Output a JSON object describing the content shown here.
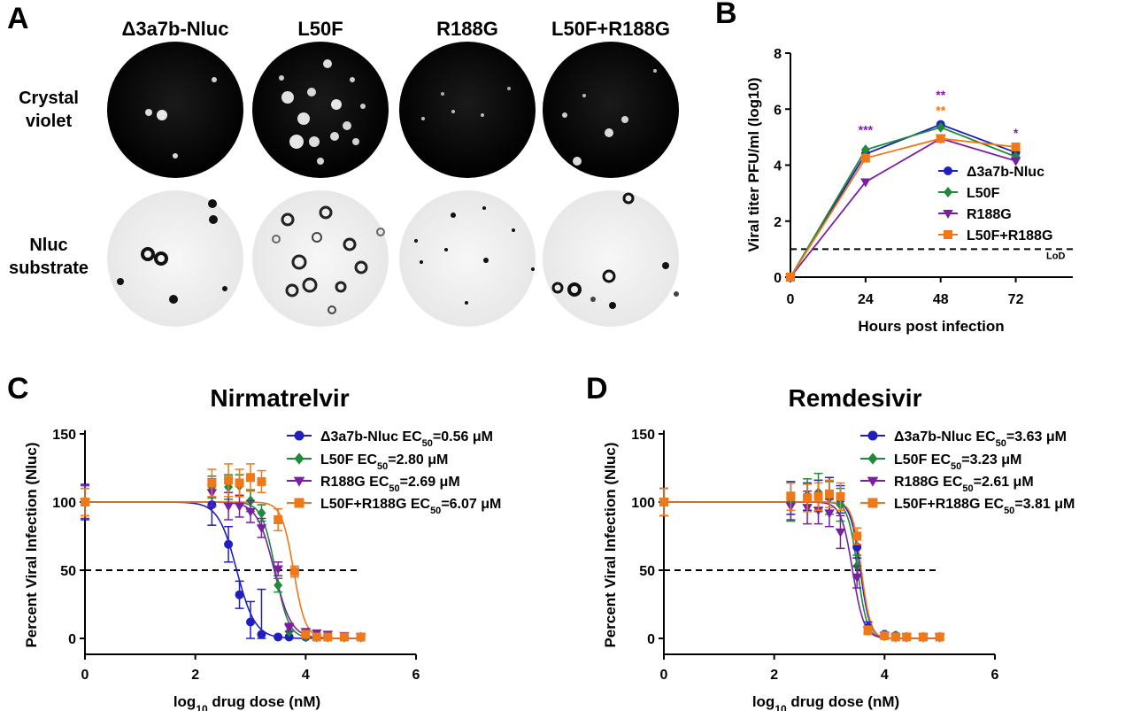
{
  "panels": {
    "a": "A",
    "b": "B",
    "c": "C",
    "d": "D"
  },
  "plaques": {
    "columns": [
      "Δ3a7b-Nluc",
      "L50F",
      "R188G",
      "L50F+R188G"
    ],
    "rows": [
      {
        "line1": "Crystal",
        "line2": "violet"
      },
      {
        "line1": "Nluc",
        "line2": "substrate"
      }
    ]
  },
  "colors": {
    "wt": "#1f1fbf",
    "l50f": "#1f8a3a",
    "r188g": "#7b1fa2",
    "double": "#f07818",
    "axis": "#000000"
  },
  "chart_data": [
    {
      "id": "B",
      "type": "line",
      "title": "",
      "xlabel": "Hours post infection",
      "ylabel": "Viral titer PFU/ml (log10)",
      "x": [
        0,
        24,
        48,
        72
      ],
      "xticks": [
        "0",
        "24",
        "48",
        "72"
      ],
      "yticks": [
        "0",
        "2",
        "4",
        "6",
        "8"
      ],
      "xlim": [
        0,
        84
      ],
      "ylim": [
        0,
        8
      ],
      "lod": {
        "value": 1,
        "label": "LoD"
      },
      "series": [
        {
          "name": "Δ3a7b-Nluc",
          "color": "#1f1fbf",
          "marker": "circle",
          "values": [
            0,
            4.4,
            5.45,
            4.45
          ]
        },
        {
          "name": "L50F",
          "color": "#1f8a3a",
          "marker": "diamond",
          "values": [
            0,
            4.55,
            5.35,
            4.3
          ]
        },
        {
          "name": "R188G",
          "color": "#7b1fa2",
          "marker": "triangle",
          "values": [
            0,
            3.4,
            4.95,
            4.15
          ]
        },
        {
          "name": "L50F+R188G",
          "color": "#f07818",
          "marker": "square",
          "values": [
            0,
            4.25,
            4.95,
            4.65
          ]
        }
      ],
      "significance": [
        {
          "x": 24,
          "y": 5.1,
          "text": "***",
          "color": "#7b1fa2"
        },
        {
          "x": 48,
          "y": 6.35,
          "text": "**",
          "color": "#7b1fa2"
        },
        {
          "x": 48,
          "y": 5.8,
          "text": "**",
          "color": "#f07818"
        },
        {
          "x": 72,
          "y": 5.0,
          "text": "*",
          "color": "#7b1fa2"
        }
      ]
    },
    {
      "id": "C",
      "type": "scatter",
      "title": "Nirmatrelvir",
      "xlabel": "log10 drug dose (nM)",
      "ylabel": "Percent Viral Infection (Nluc)",
      "xticks": [
        "0",
        "2",
        "4",
        "6"
      ],
      "yticks": [
        "0",
        "50",
        "100",
        "150"
      ],
      "xlim": [
        0,
        6
      ],
      "ylim": [
        0,
        150
      ],
      "reference_line": 50,
      "ec50_label": "EC",
      "ec50_sub": "50",
      "series": [
        {
          "name": "Δ3a7b-Nluc",
          "ec50": "=0.56 μM",
          "color": "#1f1fbf",
          "marker": "circle",
          "log_ec50": 2.75,
          "hill": 2.6,
          "x": [
            0,
            2.3,
            2.6,
            2.8,
            3.0,
            3.2,
            3.5,
            3.7,
            4.0,
            4.2,
            4.4,
            4.7,
            5.0
          ],
          "y": [
            100,
            98,
            69,
            32,
            12,
            3,
            1,
            1,
            1,
            1,
            1,
            1,
            1
          ],
          "err": [
            13,
            15,
            13,
            10,
            15,
            33,
            1,
            1,
            1,
            1,
            1,
            1,
            1
          ]
        },
        {
          "name": "L50F",
          "ec50": "=2.80 μM",
          "color": "#1f8a3a",
          "marker": "diamond",
          "log_ec50": 3.45,
          "hill": 3.6,
          "x": [
            0,
            2.3,
            2.6,
            2.8,
            3.0,
            3.2,
            3.5,
            3.7,
            4.0,
            4.2,
            4.4,
            4.7,
            5.0
          ],
          "y": [
            100,
            111,
            111,
            112,
            101,
            92,
            39,
            5,
            1,
            1,
            1,
            1,
            1
          ],
          "err": [
            10,
            8,
            9,
            8,
            8,
            6,
            5,
            2,
            1,
            1,
            1,
            1,
            1
          ]
        },
        {
          "name": "R188G",
          "ec50": "=2.69 μM",
          "color": "#7b1fa2",
          "marker": "triangle",
          "log_ec50": 3.43,
          "hill": 2.8,
          "x": [
            0,
            2.3,
            2.6,
            2.8,
            3.0,
            3.2,
            3.5,
            3.7,
            4.0,
            4.2,
            4.4,
            4.7,
            5.0
          ],
          "y": [
            100,
            107,
            97,
            97,
            93,
            81,
            51,
            8,
            5,
            4,
            3,
            2,
            1
          ],
          "err": [
            12,
            10,
            10,
            8,
            8,
            7,
            5,
            3,
            2,
            2,
            2,
            1,
            1
          ]
        },
        {
          "name": "L50F+R188G",
          "ec50": "=6.07 μM",
          "color": "#f07818",
          "marker": "square",
          "log_ec50": 3.78,
          "hill": 4.0,
          "x": [
            0,
            2.3,
            2.6,
            2.8,
            3.0,
            3.2,
            3.5,
            3.8,
            4.0,
            4.2,
            4.4,
            4.7,
            5.0
          ],
          "y": [
            100,
            114,
            116,
            114,
            118,
            115,
            87,
            49,
            3,
            1,
            1,
            1,
            1
          ],
          "err": [
            10,
            10,
            12,
            10,
            10,
            8,
            8,
            4,
            2,
            1,
            1,
            1,
            1
          ]
        }
      ]
    },
    {
      "id": "D",
      "type": "scatter",
      "title": "Remdesivir",
      "xlabel": "log10 drug dose (nM)",
      "ylabel": "Percent Viral Infection (Nluc)",
      "xticks": [
        "0",
        "2",
        "4",
        "6"
      ],
      "yticks": [
        "0",
        "50",
        "100",
        "150"
      ],
      "xlim": [
        0,
        6
      ],
      "ylim": [
        0,
        150
      ],
      "reference_line": 50,
      "ec50_label": "EC",
      "ec50_sub": "50",
      "series": [
        {
          "name": "Δ3a7b-Nluc",
          "ec50": "=3.63 μM",
          "color": "#1f1fbf",
          "marker": "circle",
          "log_ec50": 3.56,
          "hill": 5.0,
          "x": [
            0,
            2.3,
            2.6,
            2.8,
            3.0,
            3.2,
            3.5,
            3.7,
            4.0,
            4.2,
            4.4,
            4.7,
            5.0
          ],
          "y": [
            100,
            103,
            104,
            106,
            106,
            102,
            67,
            8,
            3,
            2,
            1,
            1,
            1
          ],
          "err": [
            10,
            12,
            10,
            10,
            12,
            10,
            8,
            4,
            2,
            2,
            1,
            1,
            1
          ]
        },
        {
          "name": "L50F",
          "ec50": "=3.23 μM",
          "color": "#1f8a3a",
          "marker": "diamond",
          "log_ec50": 3.51,
          "hill": 5.0,
          "x": [
            0,
            2.3,
            2.6,
            2.8,
            3.0,
            3.2,
            3.5,
            3.7,
            4.0,
            4.2,
            4.4,
            4.7,
            5.0
          ],
          "y": [
            100,
            100,
            105,
            107,
            103,
            98,
            53,
            6,
            2,
            2,
            1,
            1,
            1
          ],
          "err": [
            10,
            14,
            12,
            14,
            12,
            12,
            8,
            3,
            2,
            2,
            1,
            1,
            1
          ]
        },
        {
          "name": "R188G",
          "ec50": "=2.61 μM",
          "color": "#7b1fa2",
          "marker": "triangle",
          "log_ec50": 3.42,
          "hill": 4.2,
          "x": [
            0,
            2.3,
            2.6,
            2.8,
            3.0,
            3.2,
            3.5,
            3.7,
            4.0,
            4.2,
            4.4,
            4.7,
            5.0
          ],
          "y": [
            100,
            97,
            96,
            94,
            92,
            78,
            45,
            6,
            2,
            1,
            1,
            1,
            1
          ],
          "err": [
            10,
            10,
            12,
            10,
            10,
            12,
            8,
            3,
            2,
            1,
            1,
            1,
            1
          ]
        },
        {
          "name": "L50F+R188G",
          "ec50": "=3.81 μM",
          "color": "#f07818",
          "marker": "square",
          "log_ec50": 3.58,
          "hill": 5.2,
          "x": [
            0,
            2.3,
            2.6,
            2.8,
            3.0,
            3.2,
            3.5,
            3.7,
            4.0,
            4.2,
            4.4,
            4.7,
            5.0
          ],
          "y": [
            100,
            104,
            103,
            104,
            106,
            104,
            75,
            6,
            2,
            1,
            1,
            1,
            1
          ],
          "err": [
            10,
            10,
            10,
            10,
            10,
            10,
            6,
            3,
            2,
            1,
            1,
            1,
            1
          ]
        }
      ]
    }
  ]
}
